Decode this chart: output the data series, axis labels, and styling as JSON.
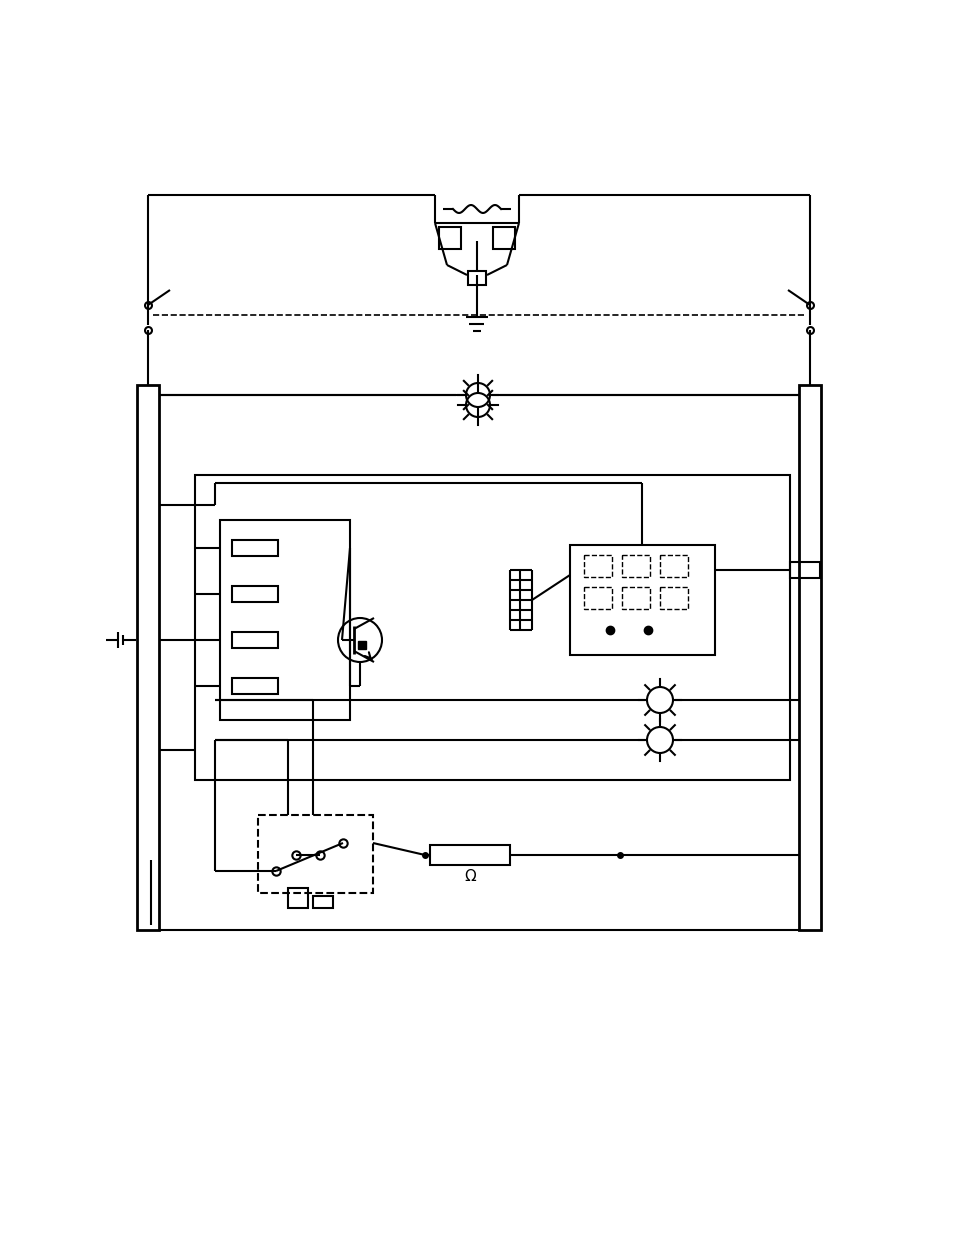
{
  "bg_color": "#ffffff",
  "line_color": "#000000",
  "fig_width": 9.54,
  "fig_height": 12.35,
  "dpi": 100
}
